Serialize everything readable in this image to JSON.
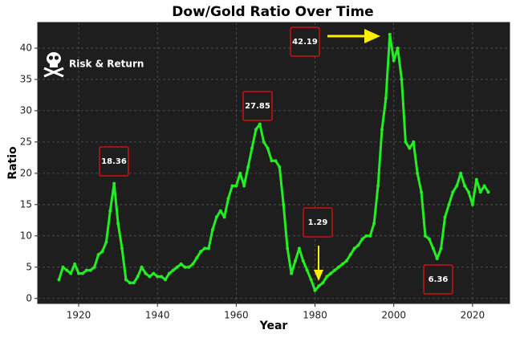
{
  "chart_data": {
    "type": "line",
    "title": "Dow/Gold Ratio Over Time",
    "x_label": "Year",
    "y_label": "Ratio",
    "watermark": "Risk & Return",
    "color": "#22ee22",
    "grid": true,
    "xlim": [
      1909.6,
      2029.4
    ],
    "ylim": [
      -0.8,
      44.1
    ],
    "xticks": [
      1920,
      1940,
      1960,
      1980,
      2000,
      2020
    ],
    "yticks": [
      0,
      5,
      10,
      15,
      20,
      25,
      30,
      35,
      40
    ],
    "x": [
      1915,
      1916,
      1917,
      1918,
      1919,
      1920,
      1921,
      1922,
      1923,
      1924,
      1925,
      1926,
      1927,
      1928,
      1929,
      1930,
      1931,
      1932,
      1933,
      1934,
      1935,
      1936,
      1937,
      1938,
      1939,
      1940,
      1941,
      1942,
      1943,
      1944,
      1945,
      1946,
      1947,
      1948,
      1949,
      1950,
      1951,
      1952,
      1953,
      1954,
      1955,
      1956,
      1957,
      1958,
      1959,
      1960,
      1961,
      1962,
      1963,
      1964,
      1965,
      1966,
      1967,
      1968,
      1969,
      1970,
      1971,
      1972,
      1973,
      1974,
      1975,
      1976,
      1977,
      1978,
      1979,
      1980,
      1981,
      1982,
      1983,
      1984,
      1985,
      1986,
      1987,
      1988,
      1989,
      1990,
      1991,
      1992,
      1993,
      1994,
      1995,
      1996,
      1997,
      1998,
      1999,
      2000,
      2001,
      2002,
      2003,
      2004,
      2005,
      2006,
      2007,
      2008,
      2009,
      2010,
      2011,
      2012,
      2013,
      2014,
      2015,
      2016,
      2017,
      2018,
      2019,
      2020,
      2021,
      2022,
      2023,
      2024
    ],
    "values": [
      3,
      5,
      4.5,
      4,
      5.5,
      4,
      4,
      4.5,
      4.5,
      5,
      7,
      7.5,
      9,
      14,
      18.36,
      12,
      8,
      3,
      2.5,
      2.5,
      3.5,
      5,
      4,
      3.5,
      4,
      3.5,
      3.5,
      3,
      4,
      4.5,
      5,
      5.5,
      5,
      5,
      5.5,
      6.5,
      7.5,
      8,
      8,
      11,
      13,
      14,
      13,
      16,
      18,
      18,
      20,
      18,
      21,
      24,
      27,
      27.85,
      25,
      24,
      22,
      22,
      21,
      15,
      8,
      4,
      6,
      8,
      6,
      4.5,
      3,
      1.29,
      2,
      2.5,
      3.5,
      4,
      4.5,
      5,
      5.5,
      6,
      7,
      8,
      8.5,
      9.5,
      10,
      10,
      12,
      18,
      27,
      32,
      42.19,
      38,
      40,
      35,
      25,
      24,
      25,
      20,
      17,
      10,
      9.5,
      8,
      6.36,
      8,
      13,
      15,
      17,
      18,
      20,
      18,
      17,
      15,
      19,
      17,
      18,
      17
    ],
    "annotations": [
      "18.36",
      "27.85",
      "42.19",
      "1.29",
      "6.36"
    ]
  }
}
